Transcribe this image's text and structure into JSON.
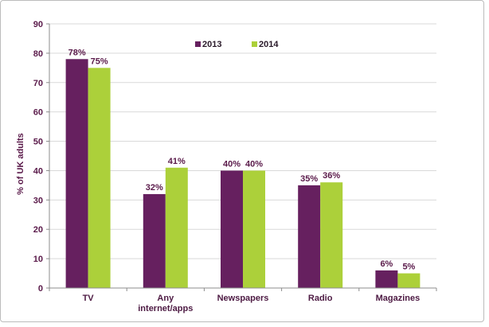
{
  "chart_data": {
    "type": "bar",
    "title": "",
    "xlabel": "",
    "ylabel": "% of UK adults",
    "ylim": [
      0,
      90
    ],
    "yticks": [
      "0",
      "10",
      "20",
      "30",
      "40",
      "50",
      "60",
      "70",
      "80",
      "90"
    ],
    "categories": [
      [
        "TV"
      ],
      [
        "Any",
        "internet/apps"
      ],
      [
        "Newspapers"
      ],
      [
        "Radio"
      ],
      [
        "Magazines"
      ]
    ],
    "series": [
      {
        "name": "2013",
        "color": "#66205f",
        "values": [
          78,
          32,
          40,
          35,
          6
        ],
        "labels": [
          "78%",
          "32%",
          "40%",
          "35%",
          "6%"
        ]
      },
      {
        "name": "2014",
        "color": "#acd03a",
        "values": [
          75,
          41,
          40,
          36,
          5
        ],
        "labels": [
          "75%",
          "41%",
          "40%",
          "36%",
          "5%"
        ]
      }
    ],
    "legend": "top-center",
    "grid": true
  }
}
